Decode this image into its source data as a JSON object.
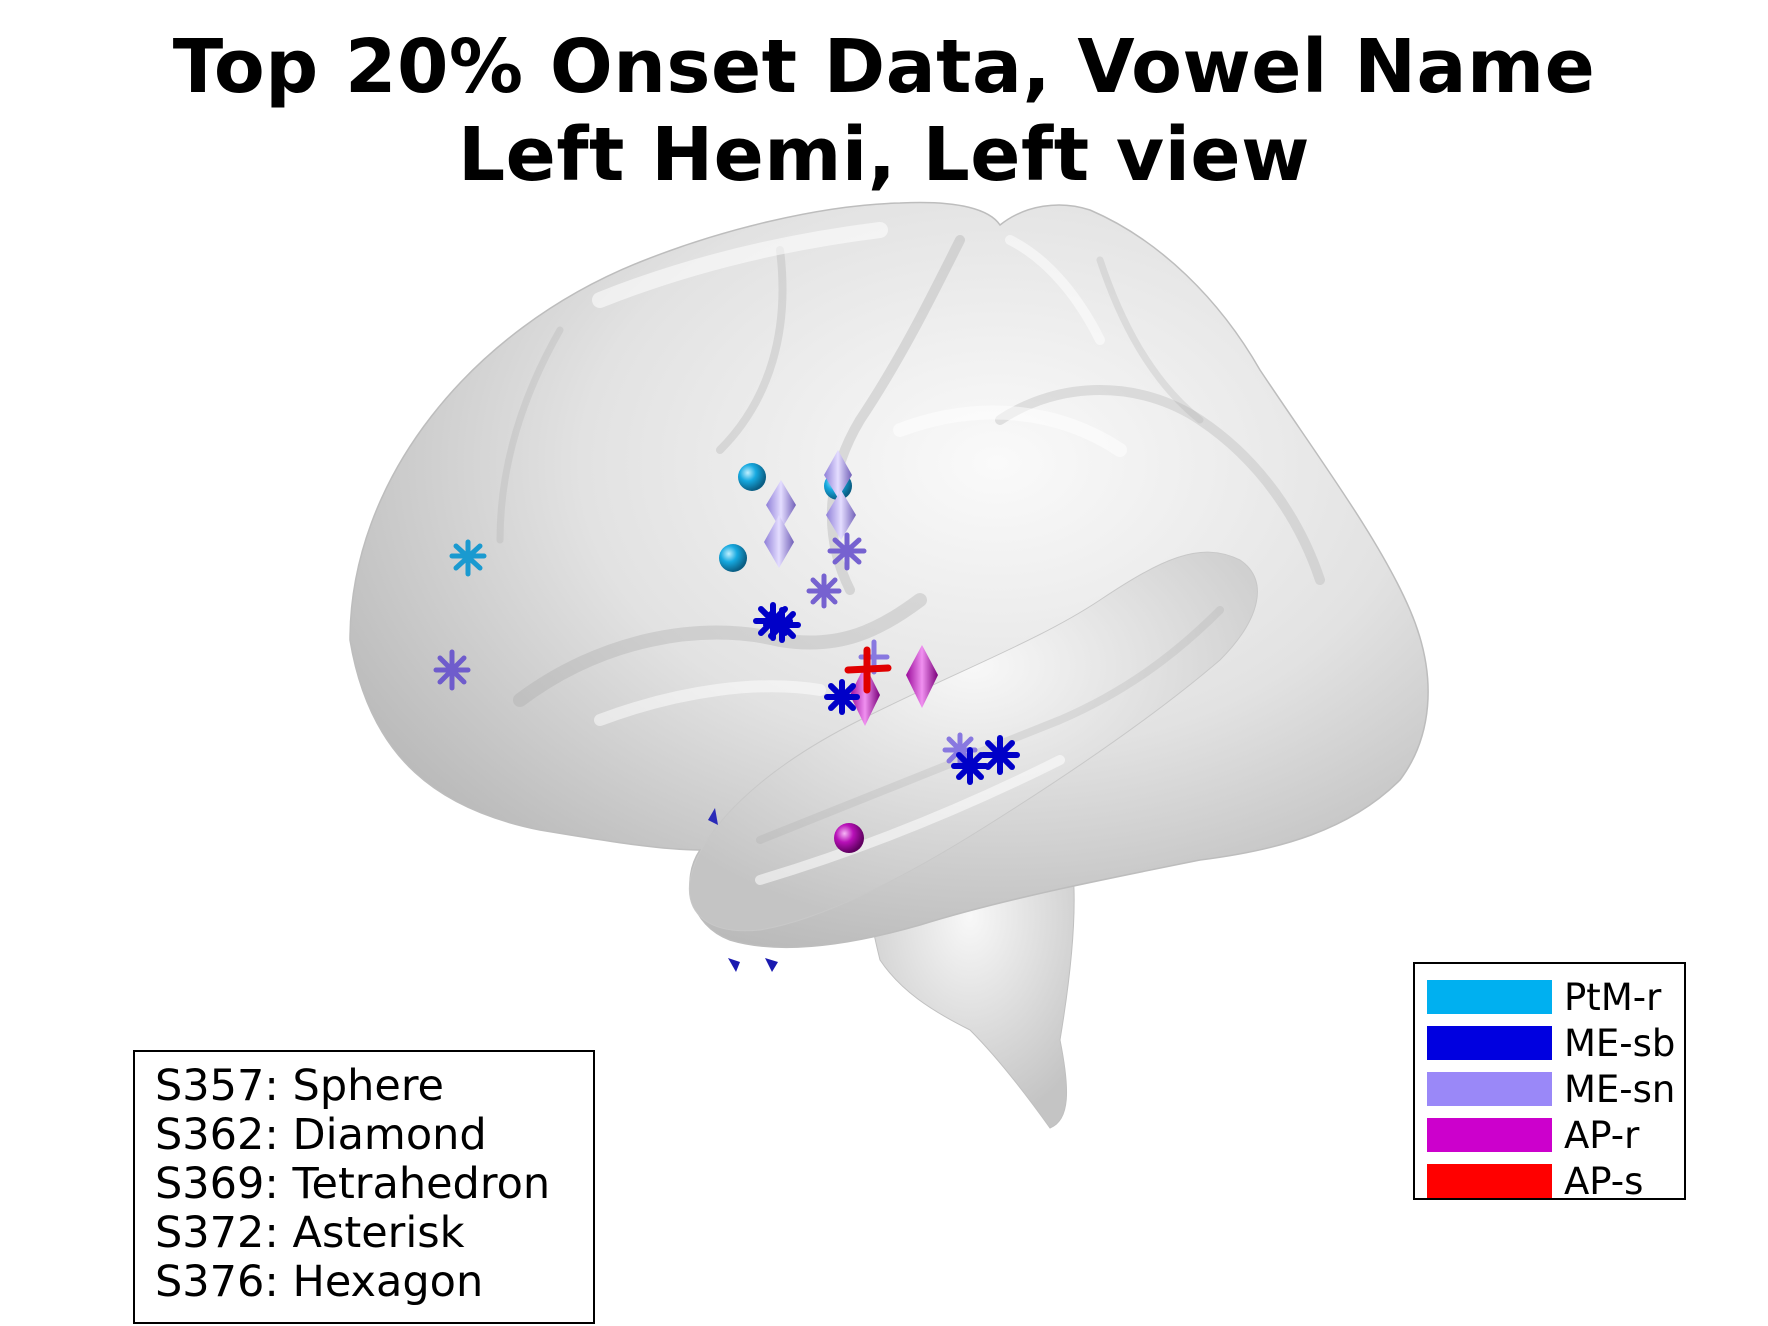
{
  "title": {
    "line1": "Top 20% Onset Data, Vowel Name",
    "line2": "Left Hemi, Left view"
  },
  "subject_legend": [
    "S357: Sphere",
    "S362: Diamond",
    "S369: Tetrahedron",
    "S372: Asterisk",
    "S376: Hexagon"
  ],
  "color_legend": [
    {
      "label": "PtM-r",
      "color": "#00b0f0"
    },
    {
      "label": "ME-sb",
      "color": "#0000e0"
    },
    {
      "label": "ME-sn",
      "color": "#9a88f8"
    },
    {
      "label": "AP-r",
      "color": "#cc00cc"
    },
    {
      "label": "AP-s",
      "color": "#ff0000"
    }
  ]
}
